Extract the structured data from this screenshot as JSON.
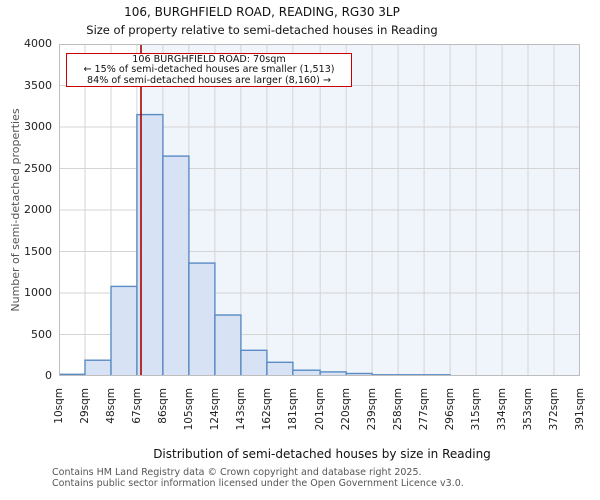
{
  "chart_data": {
    "type": "bar",
    "title": "106, BURGHFIELD ROAD, READING, RG30 3LP",
    "subtitle": "Size of property relative to semi-detached houses in Reading",
    "xlabel": "Distribution of semi-detached houses by size in Reading",
    "ylabel": "Number of semi-detached properties",
    "ylim": [
      0,
      4000
    ],
    "yticks": [
      0,
      500,
      1000,
      1500,
      2000,
      2500,
      3000,
      3500,
      4000
    ],
    "xlim_sqm": [
      10,
      391
    ],
    "bin_edges_sqm": [
      10,
      29,
      48,
      67,
      86,
      105,
      124,
      143,
      162,
      181,
      201,
      220,
      239,
      258,
      277,
      296,
      315,
      334,
      353,
      372,
      391
    ],
    "xtick_labels": [
      "10sqm",
      "29sqm",
      "48sqm",
      "67sqm",
      "86sqm",
      "105sqm",
      "124sqm",
      "143sqm",
      "162sqm",
      "181sqm",
      "201sqm",
      "220sqm",
      "239sqm",
      "258sqm",
      "277sqm",
      "296sqm",
      "315sqm",
      "334sqm",
      "353sqm",
      "372sqm",
      "391sqm"
    ],
    "values": [
      20,
      190,
      1080,
      3150,
      2650,
      1360,
      735,
      310,
      165,
      70,
      50,
      30,
      15,
      15,
      15,
      0,
      0,
      0,
      0,
      0
    ],
    "marker_value_sqm": 70,
    "grid": true,
    "annotation": {
      "line1": "106 BURGHFIELD ROAD: 70sqm",
      "line2": "← 15% of semi-detached houses are smaller (1,513)",
      "line3": "84% of semi-detached houses are larger (8,160) →"
    }
  },
  "footer": {
    "line1": "Contains HM Land Registry data © Crown copyright and database right 2025.",
    "line2": "Contains public sector information licensed under the Open Government Licence v3.0."
  },
  "colors": {
    "bar_fill": "#d7e2f4",
    "bar_edge": "#5b8cc4",
    "marker_line": "#aa0000",
    "annotation_border": "#cc0000",
    "shade_right_of_marker": "#f0f4fb",
    "gridline": "#d4d4d4",
    "spine": "#bdbdbd"
  }
}
